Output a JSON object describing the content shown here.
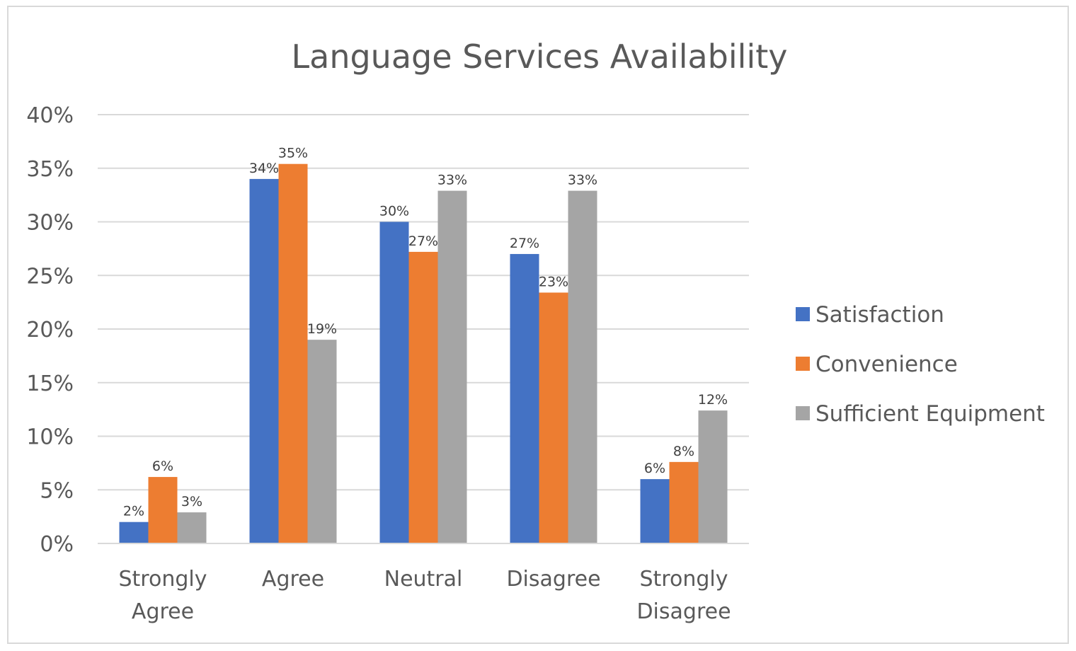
{
  "chart_data": {
    "type": "bar",
    "title": "Language Services Availability",
    "categories": [
      [
        "Strongly",
        "Agree"
      ],
      [
        "Agree"
      ],
      [
        "Neutral"
      ],
      [
        "Disagree"
      ],
      [
        "Strongly",
        "Disagree"
      ]
    ],
    "series": [
      {
        "name": "Satisfaction",
        "color": "#4472c4",
        "values": [
          2,
          34,
          30,
          27,
          6
        ],
        "labels": [
          "2%",
          "34%",
          "30%",
          "27%",
          "6%"
        ]
      },
      {
        "name": "Convenience",
        "color": "#ed7d31",
        "values": [
          6.2,
          35.4,
          27.2,
          23.4,
          7.6
        ],
        "labels": [
          "6%",
          "35%",
          "27%",
          "23%",
          "8%"
        ]
      },
      {
        "name": "Sufficient Equipment",
        "color": "#a5a5a5",
        "values": [
          2.9,
          19,
          32.9,
          32.9,
          12.4
        ],
        "labels": [
          "3%",
          "19%",
          "33%",
          "33%",
          "12%"
        ]
      }
    ],
    "ylim": [
      0,
      40
    ],
    "yticks": [
      "0%",
      "5%",
      "10%",
      "15%",
      "20%",
      "25%",
      "30%",
      "35%",
      "40%"
    ],
    "xlabel": "",
    "ylabel": "",
    "grid": true,
    "legend_position": "right"
  }
}
